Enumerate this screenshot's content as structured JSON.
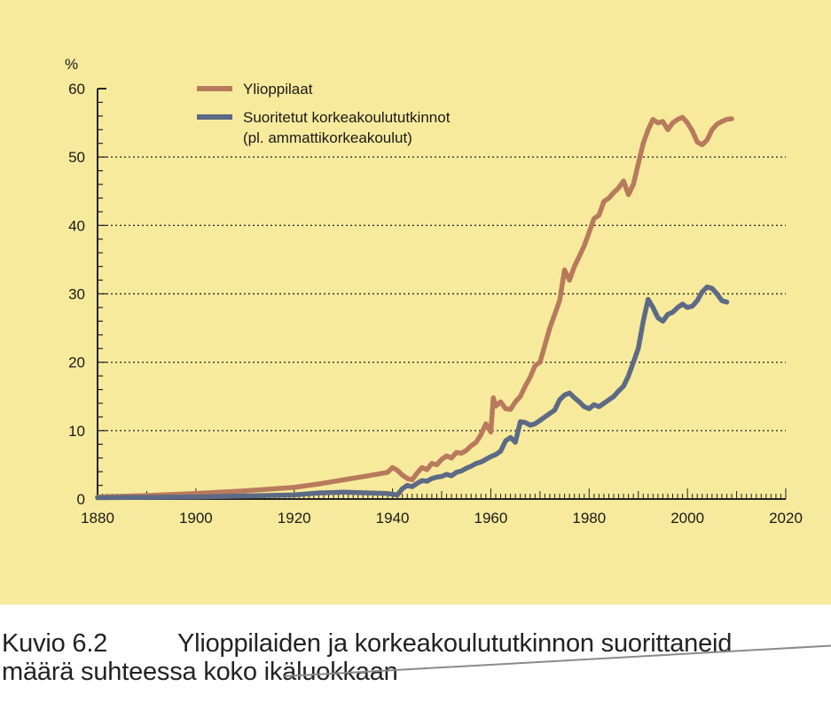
{
  "chart_data": {
    "type": "line",
    "title": "",
    "xlabel": "",
    "ylabel": "%",
    "xlim": [
      1880,
      2020
    ],
    "ylim": [
      0,
      60
    ],
    "x_ticks": [
      1880,
      1900,
      1920,
      1940,
      1960,
      1980,
      2000,
      2020
    ],
    "y_ticks": [
      0,
      10,
      20,
      30,
      40,
      50,
      60
    ],
    "grid": "horizontal dotted at 10, 20, 30, 40, 50",
    "legend_position": "top-left",
    "legend": [
      "Ylioppilaat",
      "Suoritetut korkeakoulututkinnot",
      "(pl. ammattikorkeakoulut)"
    ],
    "series": [
      {
        "name": "Ylioppilaat",
        "color": "#b87a5c",
        "points": [
          [
            1880,
            0.3
          ],
          [
            1890,
            0.5
          ],
          [
            1900,
            0.8
          ],
          [
            1910,
            1.2
          ],
          [
            1920,
            1.7
          ],
          [
            1925,
            2.2
          ],
          [
            1930,
            2.8
          ],
          [
            1935,
            3.4
          ],
          [
            1939,
            3.9
          ],
          [
            1940,
            4.6
          ],
          [
            1941,
            4.2
          ],
          [
            1942,
            3.5
          ],
          [
            1943,
            3.0
          ],
          [
            1944,
            2.8
          ],
          [
            1945,
            3.8
          ],
          [
            1946,
            4.6
          ],
          [
            1947,
            4.3
          ],
          [
            1948,
            5.2
          ],
          [
            1949,
            5.0
          ],
          [
            1950,
            5.8
          ],
          [
            1951,
            6.3
          ],
          [
            1952,
            6.0
          ],
          [
            1953,
            6.8
          ],
          [
            1954,
            6.7
          ],
          [
            1955,
            7.1
          ],
          [
            1956,
            7.8
          ],
          [
            1957,
            8.3
          ],
          [
            1958,
            9.4
          ],
          [
            1959,
            11.0
          ],
          [
            1960,
            9.8
          ],
          [
            1960.5,
            14.8
          ],
          [
            1961,
            13.6
          ],
          [
            1962,
            14.2
          ],
          [
            1963,
            13.2
          ],
          [
            1964,
            13.1
          ],
          [
            1965,
            14.2
          ],
          [
            1966,
            15.0
          ],
          [
            1967,
            16.5
          ],
          [
            1968,
            17.8
          ],
          [
            1969,
            19.5
          ],
          [
            1970,
            20.0
          ],
          [
            1971,
            22.5
          ],
          [
            1972,
            25.0
          ],
          [
            1973,
            27.0
          ],
          [
            1974,
            29.0
          ],
          [
            1975,
            33.5
          ],
          [
            1976,
            32.0
          ],
          [
            1977,
            34.0
          ],
          [
            1978,
            35.5
          ],
          [
            1979,
            37.0
          ],
          [
            1980,
            39.0
          ],
          [
            1981,
            41.0
          ],
          [
            1982,
            41.5
          ],
          [
            1983,
            43.5
          ],
          [
            1984,
            44.0
          ],
          [
            1985,
            44.8
          ],
          [
            1986,
            45.5
          ],
          [
            1987,
            46.5
          ],
          [
            1988,
            44.5
          ],
          [
            1989,
            46.0
          ],
          [
            1990,
            49.0
          ],
          [
            1991,
            52.0
          ],
          [
            1992,
            54.0
          ],
          [
            1993,
            55.5
          ],
          [
            1994,
            55.0
          ],
          [
            1995,
            55.2
          ],
          [
            1996,
            54.0
          ],
          [
            1997,
            55.0
          ],
          [
            1998,
            55.5
          ],
          [
            1999,
            55.8
          ],
          [
            2000,
            55.0
          ],
          [
            2001,
            53.8
          ],
          [
            2002,
            52.2
          ],
          [
            2003,
            51.8
          ],
          [
            2004,
            52.5
          ],
          [
            2005,
            54.0
          ],
          [
            2006,
            54.8
          ],
          [
            2007,
            55.2
          ],
          [
            2008,
            55.5
          ],
          [
            2009,
            55.6
          ]
        ]
      },
      {
        "name": "Suoritetut korkeakoulututkinnot (pl. ammattikorkeakoulut)",
        "color": "#5d6a86",
        "points": [
          [
            1880,
            0.2
          ],
          [
            1900,
            0.3
          ],
          [
            1920,
            0.6
          ],
          [
            1925,
            0.9
          ],
          [
            1930,
            1.0
          ],
          [
            1935,
            0.9
          ],
          [
            1939,
            0.8
          ],
          [
            1940,
            0.7
          ],
          [
            1941,
            0.6
          ],
          [
            1942,
            1.5
          ],
          [
            1943,
            2.0
          ],
          [
            1944,
            1.8
          ],
          [
            1945,
            2.3
          ],
          [
            1946,
            2.7
          ],
          [
            1947,
            2.6
          ],
          [
            1948,
            3.0
          ],
          [
            1949,
            3.2
          ],
          [
            1950,
            3.3
          ],
          [
            1951,
            3.6
          ],
          [
            1952,
            3.4
          ],
          [
            1953,
            3.9
          ],
          [
            1954,
            4.1
          ],
          [
            1955,
            4.5
          ],
          [
            1956,
            4.8
          ],
          [
            1957,
            5.2
          ],
          [
            1958,
            5.4
          ],
          [
            1959,
            5.8
          ],
          [
            1960,
            6.2
          ],
          [
            1961,
            6.5
          ],
          [
            1962,
            7.0
          ],
          [
            1963,
            8.5
          ],
          [
            1964,
            9.0
          ],
          [
            1965,
            8.3
          ],
          [
            1966,
            11.3
          ],
          [
            1967,
            11.2
          ],
          [
            1968,
            10.8
          ],
          [
            1969,
            11.0
          ],
          [
            1970,
            11.5
          ],
          [
            1971,
            12.0
          ],
          [
            1972,
            12.5
          ],
          [
            1973,
            13.0
          ],
          [
            1974,
            14.5
          ],
          [
            1975,
            15.2
          ],
          [
            1976,
            15.5
          ],
          [
            1977,
            14.8
          ],
          [
            1978,
            14.2
          ],
          [
            1979,
            13.5
          ],
          [
            1980,
            13.2
          ],
          [
            1981,
            13.8
          ],
          [
            1982,
            13.5
          ],
          [
            1983,
            14.0
          ],
          [
            1984,
            14.5
          ],
          [
            1985,
            15.0
          ],
          [
            1986,
            15.8
          ],
          [
            1987,
            16.5
          ],
          [
            1988,
            18.0
          ],
          [
            1989,
            20.0
          ],
          [
            1990,
            22.0
          ],
          [
            1991,
            26.0
          ],
          [
            1992,
            29.2
          ],
          [
            1993,
            28.0
          ],
          [
            1994,
            26.5
          ],
          [
            1995,
            26.0
          ],
          [
            1996,
            27.0
          ],
          [
            1997,
            27.3
          ],
          [
            1998,
            28.0
          ],
          [
            1999,
            28.5
          ],
          [
            2000,
            28.0
          ],
          [
            2001,
            28.2
          ],
          [
            2002,
            29.0
          ],
          [
            2003,
            30.3
          ],
          [
            2004,
            31.0
          ],
          [
            2005,
            30.8
          ],
          [
            2006,
            30.0
          ],
          [
            2007,
            29.0
          ],
          [
            2008,
            28.8
          ]
        ]
      }
    ]
  },
  "caption": {
    "label": "Kuvio 6.2",
    "line1": "Ylioppilaiden ja korkeakoulututkinnon suorittaneid",
    "line2": "määrä suhteessa koko ikäluokkaan"
  },
  "colors": {
    "background": "#f7ea9c",
    "grid": "#333333",
    "axis": "#222222"
  }
}
